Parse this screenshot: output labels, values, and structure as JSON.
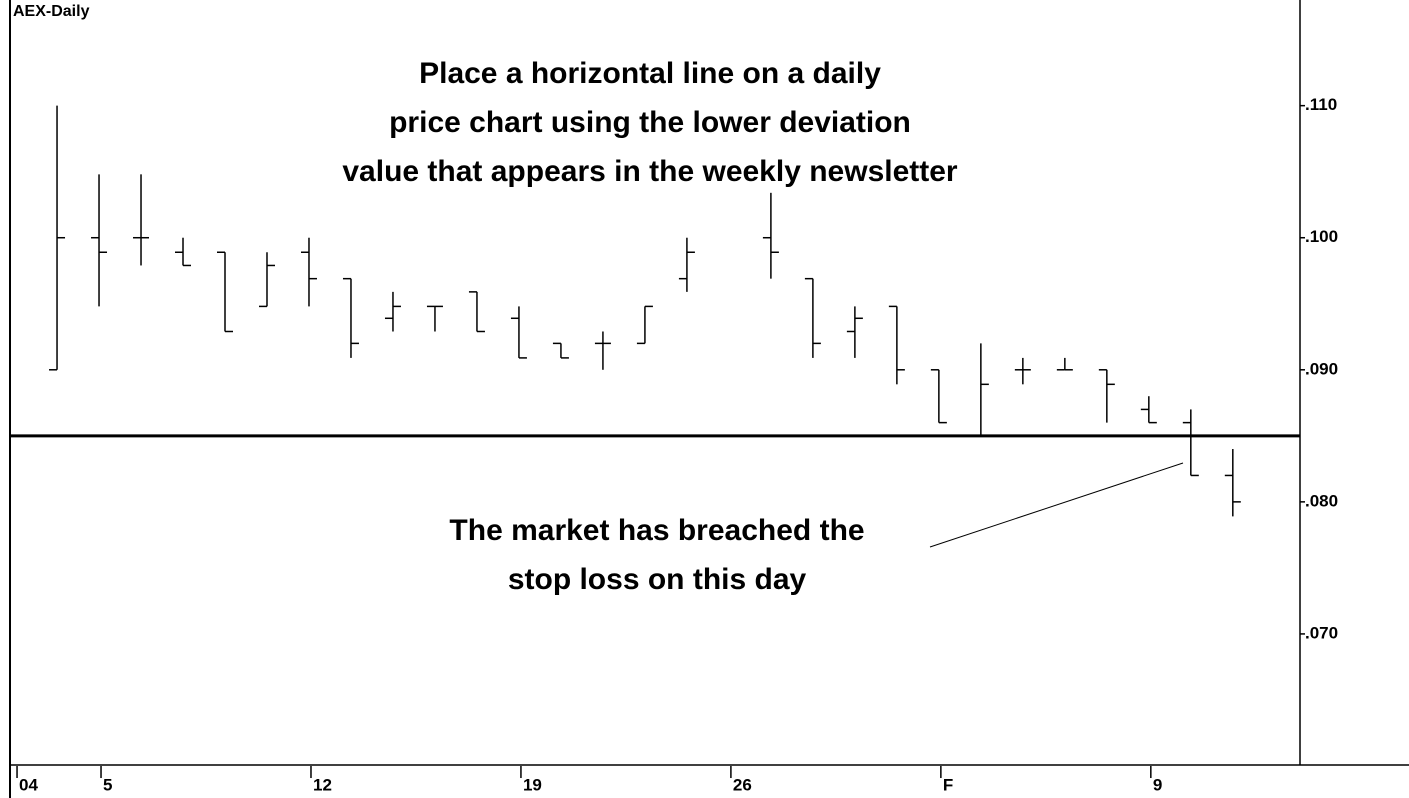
{
  "chart_data": {
    "type": "ohlc",
    "title": "AEX-Daily",
    "annotations": [
      {
        "lines": [
          "Place a horizontal line on a daily",
          "price chart using the lower deviation",
          "value that appears in the weekly newsletter"
        ]
      },
      {
        "lines": [
          "The market has breached the",
          "stop loss on this day"
        ]
      }
    ],
    "x": [
      0,
      1,
      2,
      3,
      4,
      5,
      6,
      7,
      8,
      9,
      10,
      11,
      12,
      13,
      14,
      15,
      17,
      18,
      19,
      20,
      21,
      22,
      23,
      24,
      25,
      26,
      27,
      28
    ],
    "open": [
      0.09,
      0.1,
      0.1,
      0.0989,
      0.0989,
      0.0948,
      0.0989,
      0.0969,
      0.0939,
      0.0948,
      0.0959,
      0.0939,
      0.092,
      0.092,
      0.092,
      0.0969,
      0.1,
      0.0969,
      0.0929,
      0.0948,
      0.09,
      0.085,
      0.09,
      0.09,
      0.09,
      0.087,
      0.086,
      0.082
    ],
    "high": [
      0.11,
      0.1048,
      0.1048,
      0.1,
      0.0989,
      0.0989,
      0.1,
      0.0969,
      0.0959,
      0.0948,
      0.0959,
      0.0948,
      0.092,
      0.0929,
      0.0948,
      0.1,
      0.1034,
      0.0969,
      0.0948,
      0.0948,
      0.09,
      0.092,
      0.0909,
      0.0909,
      0.09,
      0.088,
      0.087,
      0.084
    ],
    "low": [
      0.09,
      0.0948,
      0.0979,
      0.0979,
      0.0929,
      0.0948,
      0.0948,
      0.0909,
      0.0929,
      0.0929,
      0.0929,
      0.0909,
      0.0909,
      0.09,
      0.092,
      0.0959,
      0.0969,
      0.0909,
      0.0909,
      0.0889,
      0.086,
      0.085,
      0.0889,
      0.09,
      0.086,
      0.086,
      0.082,
      0.0789
    ],
    "close": [
      0.1,
      0.0989,
      0.1,
      0.0979,
      0.0929,
      0.0979,
      0.0969,
      0.092,
      0.0948,
      0.0948,
      0.0929,
      0.0909,
      0.0909,
      0.092,
      0.0948,
      0.0989,
      0.0989,
      0.092,
      0.0939,
      0.09,
      0.086,
      0.0889,
      0.09,
      0.09,
      0.0889,
      0.086,
      0.082,
      0.08
    ],
    "color": "#000000",
    "hline": 0.085,
    "xlim": [
      -1.12,
      29.6
    ],
    "xticks": [
      {
        "value": -1,
        "label": "04"
      },
      {
        "value": 1,
        "label": "5"
      },
      {
        "value": 6,
        "label": "12"
      },
      {
        "value": 11,
        "label": "19"
      },
      {
        "value": 16,
        "label": "26"
      },
      {
        "value": 21,
        "label": "F"
      },
      {
        "value": 26,
        "label": "9"
      }
    ],
    "ylim": [
      0.06,
      0.118
    ],
    "yticks": [
      {
        "value": 0.11,
        "label": ".110"
      },
      {
        "value": 0.1,
        "label": ".100"
      },
      {
        "value": 0.09,
        "label": ".090"
      },
      {
        "value": 0.08,
        "label": ".080"
      },
      {
        "value": 0.07,
        "label": ".070"
      }
    ]
  }
}
